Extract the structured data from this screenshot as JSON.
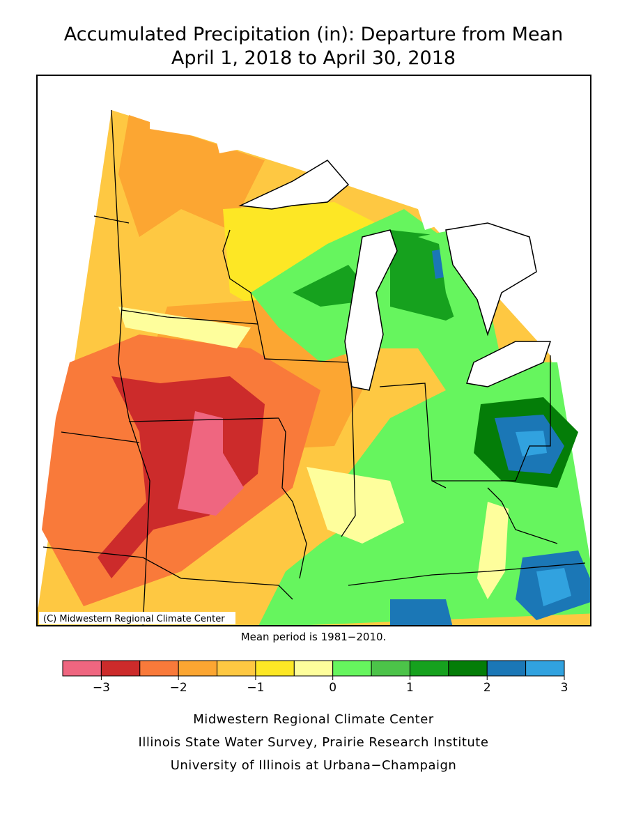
{
  "title": [
    "Accumulated Precipitation (in): Departure from Mean",
    "April 1, 2018 to April 30, 2018"
  ],
  "copyright": "(C) Midwestern Regional Climate Center",
  "note": "Mean period is 1981−2010.",
  "colorbar": {
    "colors": [
      "#ef6680",
      "#cc2b2b",
      "#f97a3a",
      "#fca632",
      "#fec842",
      "#fde725",
      "#fefe9c",
      "#66f55e",
      "#4cc349",
      "#16a11e",
      "#047d08",
      "#1b77b6",
      "#31a2df"
    ],
    "lim": [
      -3.5,
      3
    ],
    "ticks": [
      {
        "value": -3,
        "label": "−3"
      },
      {
        "value": -2,
        "label": "−2"
      },
      {
        "value": -1,
        "label": "−1"
      },
      0,
      1,
      2,
      3
    ]
  },
  "footer": [
    "Midwestern Regional Climate Center",
    "Illinois State Water Survey, Prairie Research Institute",
    "University of Illinois at Urbana−Champaign"
  ]
}
